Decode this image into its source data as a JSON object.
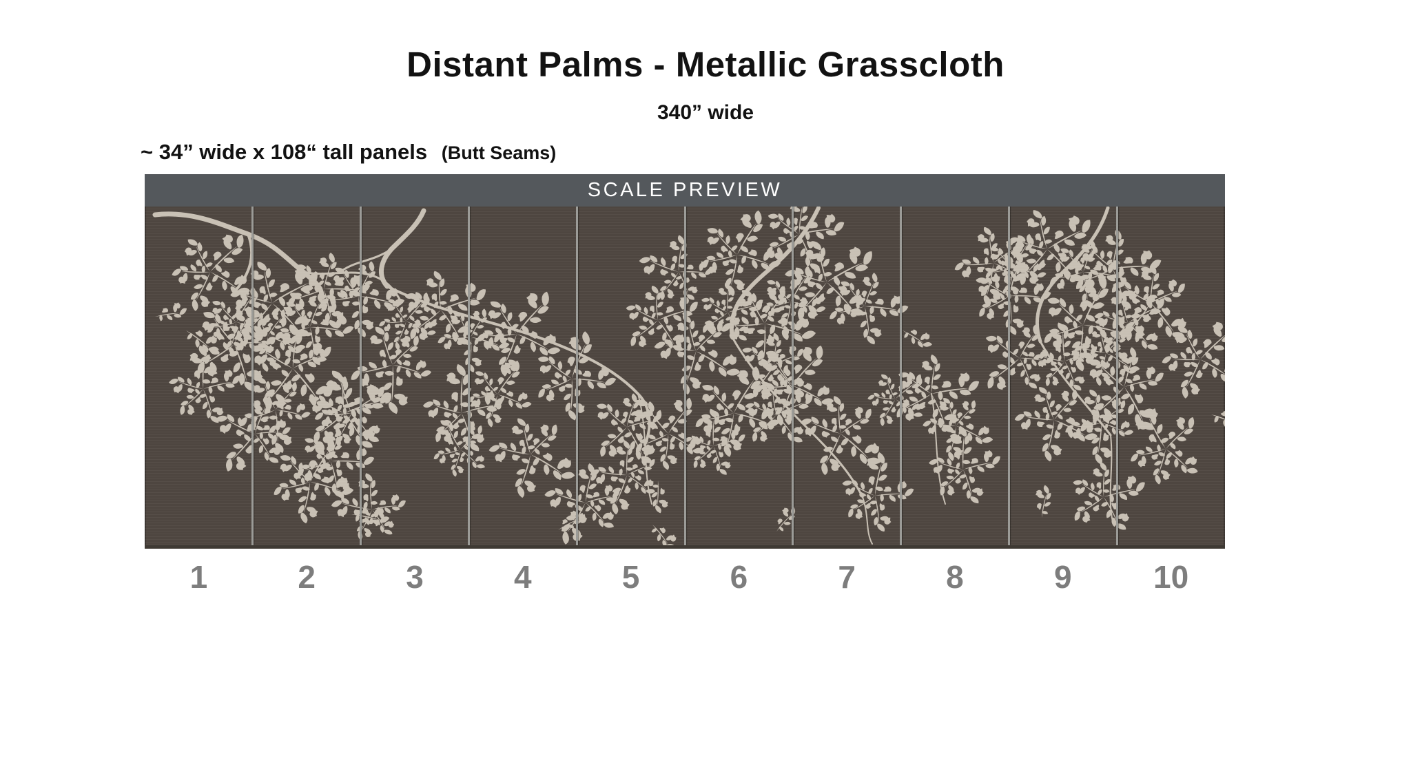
{
  "header": {
    "title": "Distant Palms - Metallic Grasscloth",
    "subtitle": "340” wide",
    "panel_spec": "~ 34” wide x 108“ tall panels",
    "panel_spec_note": "(Butt Seams)"
  },
  "preview": {
    "bar_label": "SCALE PREVIEW",
    "panel_numbers": [
      "1",
      "2",
      "3",
      "4",
      "5",
      "6",
      "7",
      "8",
      "9",
      "10"
    ]
  },
  "colors": {
    "page_bg": "#ffffff",
    "text": "#121212",
    "bar_bg": "#54585c",
    "bar_text": "#ffffff",
    "wallpaper_bg": "#4e4640",
    "foliage": "#c8c0b4",
    "seam": "#9b9b97",
    "number_text": "#7d7d7d"
  }
}
